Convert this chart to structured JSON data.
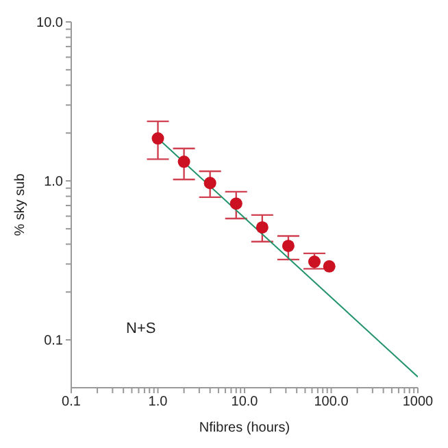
{
  "chart_data": {
    "type": "scatter",
    "xlabel": "Nfibres (hours)",
    "ylabel": "% sky sub",
    "log": "xy",
    "marker": "circle",
    "xlim": [
      0.1,
      1000
    ],
    "ylim": [
      0.05,
      10
    ],
    "xticks": [
      {
        "value": 0.1,
        "label": "0.1"
      },
      {
        "value": 0.2,
        "label": null
      },
      {
        "value": 0.3,
        "label": null
      },
      {
        "value": 0.4,
        "label": null
      },
      {
        "value": 0.5,
        "label": null
      },
      {
        "value": 0.6,
        "label": null
      },
      {
        "value": 0.7,
        "label": null
      },
      {
        "value": 0.8,
        "label": null
      },
      {
        "value": 0.9,
        "label": null
      },
      {
        "value": 1,
        "label": "1.0"
      },
      {
        "value": 2,
        "label": null
      },
      {
        "value": 3,
        "label": null
      },
      {
        "value": 4,
        "label": null
      },
      {
        "value": 5,
        "label": null
      },
      {
        "value": 6,
        "label": null
      },
      {
        "value": 7,
        "label": null
      },
      {
        "value": 8,
        "label": null
      },
      {
        "value": 9,
        "label": null
      },
      {
        "value": 10,
        "label": "10.0"
      },
      {
        "value": 20,
        "label": null
      },
      {
        "value": 30,
        "label": null
      },
      {
        "value": 40,
        "label": null
      },
      {
        "value": 50,
        "label": null
      },
      {
        "value": 60,
        "label": null
      },
      {
        "value": 70,
        "label": null
      },
      {
        "value": 80,
        "label": null
      },
      {
        "value": 90,
        "label": null
      },
      {
        "value": 100,
        "label": "100.0"
      },
      {
        "value": 200,
        "label": null
      },
      {
        "value": 300,
        "label": null
      },
      {
        "value": 400,
        "label": null
      },
      {
        "value": 500,
        "label": null
      },
      {
        "value": 600,
        "label": null
      },
      {
        "value": 700,
        "label": null
      },
      {
        "value": 800,
        "label": null
      },
      {
        "value": 900,
        "label": null
      },
      {
        "value": 1000,
        "label": "1000"
      }
    ],
    "yticks": [
      {
        "value": 0.1,
        "label": "0.1"
      },
      {
        "value": 0.2,
        "label": null
      },
      {
        "value": 0.3,
        "label": null
      },
      {
        "value": 0.4,
        "label": null
      },
      {
        "value": 0.5,
        "label": null
      },
      {
        "value": 0.6,
        "label": null
      },
      {
        "value": 0.7,
        "label": null
      },
      {
        "value": 0.8,
        "label": null
      },
      {
        "value": 0.9,
        "label": null
      },
      {
        "value": 1,
        "label": "1.0"
      },
      {
        "value": 2,
        "label": null
      },
      {
        "value": 3,
        "label": null
      },
      {
        "value": 4,
        "label": null
      },
      {
        "value": 5,
        "label": null
      },
      {
        "value": 6,
        "label": null
      },
      {
        "value": 7,
        "label": null
      },
      {
        "value": 8,
        "label": null
      },
      {
        "value": 9,
        "label": null
      },
      {
        "value": 10,
        "label": "10.0"
      }
    ],
    "annotations": [
      "N+S"
    ],
    "series": [
      {
        "color": "#cc1122",
        "x": [
          1,
          2,
          4,
          8,
          16,
          32,
          64,
          95
        ],
        "values": [
          1.85,
          1.32,
          0.97,
          0.72,
          0.51,
          0.39,
          0.31,
          0.29
        ],
        "errors": [
          [
            1.37,
            2.37
          ],
          [
            1.02,
            1.6
          ],
          [
            0.79,
            1.15
          ],
          [
            0.58,
            0.855
          ],
          [
            0.415,
            0.61
          ],
          [
            0.32,
            0.45
          ],
          [
            0.28,
            0.35
          ],
          null
        ]
      },
      {
        "type": "line",
        "marker": "none",
        "color": "#22936a",
        "x": [
          1,
          1000
        ],
        "values": [
          1.85,
          0.0585
        ]
      }
    ]
  }
}
